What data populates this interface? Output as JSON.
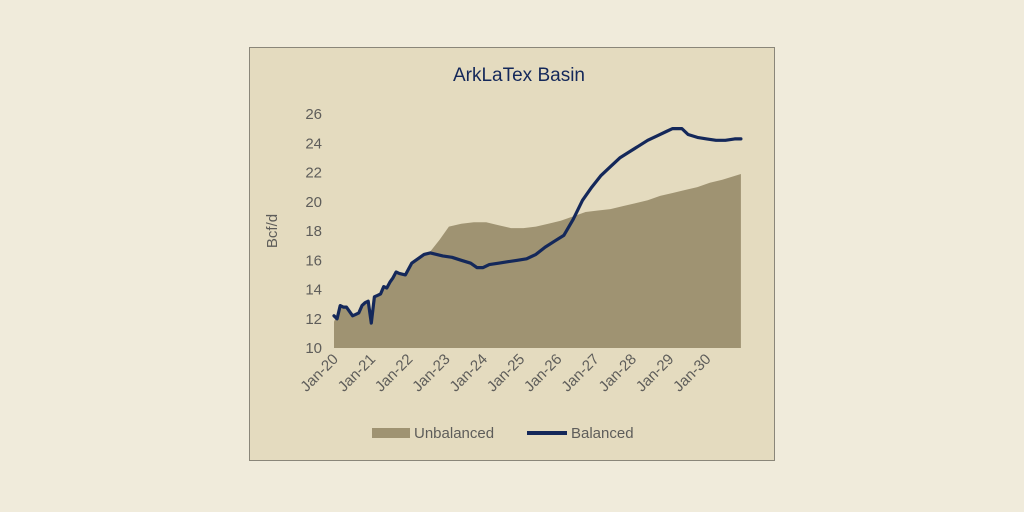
{
  "colors": {
    "page_background": "#f0ebdb",
    "plot_background": "#e4dbbf",
    "unbalanced_fill": "#9f9372",
    "balanced_line": "#14285a",
    "title": "#14285a",
    "text": "#5e5d5a"
  },
  "chart_data": {
    "type": "area",
    "title": "ArkLaTex Basin",
    "xlabel": "",
    "ylabel": "Bcf/d",
    "ylim": [
      10,
      26
    ],
    "yticks": [
      10,
      12,
      14,
      16,
      18,
      20,
      22,
      24,
      26
    ],
    "xlim": [
      "2020-01",
      "2030-12"
    ],
    "xticks": [
      "Jan-20",
      "Jan-21",
      "Jan-22",
      "Jan-23",
      "Jan-24",
      "Jan-25",
      "Jan-26",
      "Jan-27",
      "Jan-28",
      "Jan-29",
      "Jan-30"
    ],
    "grid": false,
    "legend_position": "bottom",
    "series": [
      {
        "name": "Unbalanced",
        "type": "area",
        "color": "#9f9372",
        "points": [
          [
            "2020-01",
            11.8
          ],
          [
            "2020-03",
            12.8
          ],
          [
            "2020-05",
            12.8
          ],
          [
            "2020-07",
            12.1
          ],
          [
            "2020-09",
            12.4
          ],
          [
            "2020-11",
            13.0
          ],
          [
            "2020-12",
            13.1
          ],
          [
            "2021-01",
            11.7
          ],
          [
            "2021-02",
            13.4
          ],
          [
            "2021-04",
            13.7
          ],
          [
            "2021-06",
            14.3
          ],
          [
            "2021-08",
            14.8
          ],
          [
            "2021-10",
            15.2
          ],
          [
            "2021-12",
            15.0
          ],
          [
            "2022-02",
            15.9
          ],
          [
            "2022-05",
            16.3
          ],
          [
            "2022-08",
            16.6
          ],
          [
            "2022-11",
            17.4
          ],
          [
            "2023-02",
            18.3
          ],
          [
            "2023-06",
            18.5
          ],
          [
            "2023-10",
            18.6
          ],
          [
            "2024-02",
            18.6
          ],
          [
            "2024-06",
            18.4
          ],
          [
            "2024-10",
            18.2
          ],
          [
            "2025-02",
            18.2
          ],
          [
            "2025-06",
            18.3
          ],
          [
            "2025-10",
            18.5
          ],
          [
            "2026-02",
            18.7
          ],
          [
            "2026-06",
            19.0
          ],
          [
            "2026-10",
            19.3
          ],
          [
            "2027-02",
            19.4
          ],
          [
            "2027-06",
            19.5
          ],
          [
            "2027-10",
            19.7
          ],
          [
            "2028-02",
            19.9
          ],
          [
            "2028-06",
            20.1
          ],
          [
            "2028-10",
            20.4
          ],
          [
            "2029-02",
            20.6
          ],
          [
            "2029-06",
            20.8
          ],
          [
            "2029-10",
            21.0
          ],
          [
            "2030-02",
            21.3
          ],
          [
            "2030-06",
            21.5
          ],
          [
            "2030-12",
            21.9
          ]
        ]
      },
      {
        "name": "Balanced",
        "type": "line",
        "color": "#14285a",
        "points": [
          [
            "2020-01",
            12.2
          ],
          [
            "2020-02",
            12.0
          ],
          [
            "2020-03",
            12.9
          ],
          [
            "2020-04",
            12.8
          ],
          [
            "2020-05",
            12.8
          ],
          [
            "2020-06",
            12.5
          ],
          [
            "2020-07",
            12.2
          ],
          [
            "2020-08",
            12.3
          ],
          [
            "2020-09",
            12.4
          ],
          [
            "2020-10",
            12.9
          ],
          [
            "2020-11",
            13.1
          ],
          [
            "2020-12",
            13.2
          ],
          [
            "2021-01",
            11.7
          ],
          [
            "2021-02",
            13.5
          ],
          [
            "2021-03",
            13.6
          ],
          [
            "2021-04",
            13.7
          ],
          [
            "2021-05",
            14.2
          ],
          [
            "2021-06",
            14.1
          ],
          [
            "2021-07",
            14.5
          ],
          [
            "2021-08",
            14.8
          ],
          [
            "2021-09",
            15.2
          ],
          [
            "2021-10",
            15.1
          ],
          [
            "2021-12",
            15.0
          ],
          [
            "2022-02",
            15.8
          ],
          [
            "2022-04",
            16.1
          ],
          [
            "2022-06",
            16.4
          ],
          [
            "2022-08",
            16.5
          ],
          [
            "2022-10",
            16.4
          ],
          [
            "2022-12",
            16.3
          ],
          [
            "2023-03",
            16.2
          ],
          [
            "2023-06",
            16.0
          ],
          [
            "2023-09",
            15.8
          ],
          [
            "2023-11",
            15.5
          ],
          [
            "2024-01",
            15.5
          ],
          [
            "2024-03",
            15.7
          ],
          [
            "2024-06",
            15.8
          ],
          [
            "2024-09",
            15.9
          ],
          [
            "2024-12",
            16.0
          ],
          [
            "2025-03",
            16.1
          ],
          [
            "2025-06",
            16.4
          ],
          [
            "2025-09",
            16.9
          ],
          [
            "2025-12",
            17.3
          ],
          [
            "2026-03",
            17.7
          ],
          [
            "2026-06",
            18.8
          ],
          [
            "2026-09",
            20.1
          ],
          [
            "2026-12",
            21.0
          ],
          [
            "2027-03",
            21.8
          ],
          [
            "2027-06",
            22.4
          ],
          [
            "2027-09",
            23.0
          ],
          [
            "2027-12",
            23.4
          ],
          [
            "2028-03",
            23.8
          ],
          [
            "2028-06",
            24.2
          ],
          [
            "2028-09",
            24.5
          ],
          [
            "2028-12",
            24.8
          ],
          [
            "2029-02",
            25.0
          ],
          [
            "2029-05",
            25.0
          ],
          [
            "2029-07",
            24.6
          ],
          [
            "2029-10",
            24.4
          ],
          [
            "2030-01",
            24.3
          ],
          [
            "2030-04",
            24.2
          ],
          [
            "2030-07",
            24.2
          ],
          [
            "2030-10",
            24.3
          ],
          [
            "2030-12",
            24.3
          ]
        ]
      }
    ]
  }
}
